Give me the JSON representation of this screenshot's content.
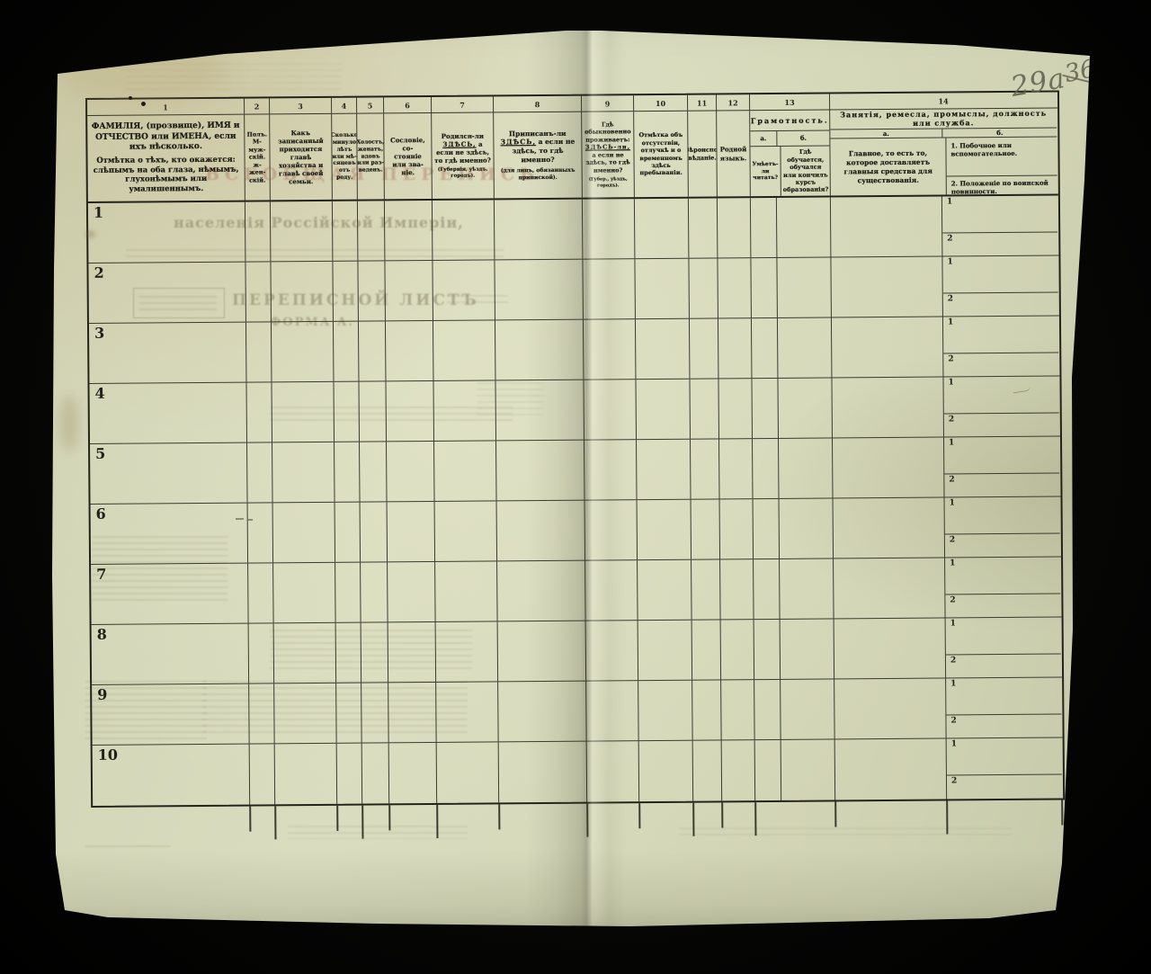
{
  "annotations": {
    "page_number": "29a",
    "crossed_number": "36"
  },
  "ghost_text": {
    "census_title": "ВСЕОБЩАЯ ПЕРЕПИСЬ",
    "subtitle": "населенія Россійской Имперіи,",
    "sheet_title": "ПЕРЕПИСНОЙ ЛИСТЪ",
    "form_label": "ФОРМА А."
  },
  "table": {
    "columns": [
      {
        "num": "1",
        "line1": "ФАМИЛІЯ, (прозвище), ИМЯ и ОТЧЕСТВО или ИМЕНА, если ихъ нѣсколько.",
        "line2": "Отмѣтка о тѣхъ, кто окажется: слѣпымъ на оба глаза, нѣмымъ, глухонѣмымъ или умалишеннымъ."
      },
      {
        "num": "2",
        "text": "Полъ.\nМ-муж-\nскій.\nж-жен-\nскій."
      },
      {
        "num": "3",
        "text": "Какъ записанный приходится главѣ хозяйства и главѣ своей семьи."
      },
      {
        "num": "4",
        "text": "Сколько\nминуло\nлѣтъ\nили мѣ-\nсяцевъ\nотъ роду."
      },
      {
        "num": "5",
        "text": "Холостъ,\nженатъ,\nвдовъ\nили раз-\nведенъ."
      },
      {
        "num": "6",
        "text": "Сословіе, со-\nстояніе или зва-\nніе."
      },
      {
        "num": "7",
        "pre": "Родился-ли",
        "em": "ЗДѢСЬ,",
        "post": "а если не здѣсь, то гдѣ именно?",
        "note": "(Губернія, уѣздъ, городъ)."
      },
      {
        "num": "8",
        "pre": "Приписанъ-ли",
        "em": "ЗДѢСЬ,",
        "post": "а если не здѣсь, то гдѣ именно?",
        "note": "(для лицъ, обязанныхъ припиской)."
      },
      {
        "num": "9",
        "pre": "Гдѣ обыкновенно проживаетъ:",
        "em": "ЗДѢСЬ-ли,",
        "post": "а если не здѣсь, то гдѣ именно?",
        "note": "(Губер., уѣздъ, городъ)."
      },
      {
        "num": "10",
        "text": "Отмѣтка объ отсутствіи, отлучкѣ и о временномъ здѣсь пребываніи."
      },
      {
        "num": "11",
        "text": "Вѣроиспо-\nвѣданіе."
      },
      {
        "num": "12",
        "text": "Родной языкъ."
      },
      {
        "num": "13",
        "group": "Грамотность.",
        "a_label": "а.",
        "b_label": "б.",
        "a_text": "Умѣетъ-\nли\nчитать?",
        "b_text": "Гдѣ обучается, обучался или кончилъ курсъ образованія?"
      },
      {
        "num": "14",
        "group": "Занятія, ремесла, промыслы, должность или служба.",
        "a_label": "а.",
        "b_label": "б.",
        "a_text": "Главное, то есть то, которое доставляетъ главныя средства для существованія.",
        "b1": "1. Побочное или вспомогательное.",
        "b2": "2. Положеніе по воинской повинности."
      }
    ],
    "row_numbers": [
      "1",
      "2",
      "3",
      "4",
      "5",
      "6",
      "7",
      "8",
      "9",
      "10"
    ],
    "subcell_labels": [
      "1",
      "2"
    ]
  },
  "colors": {
    "background": "#060605",
    "paper": "#d5d7b9",
    "table_line": "#35352a",
    "ghost_ink": "#8f8a6b",
    "ghost_red": "#b07a64",
    "pencil": "#5e6350"
  }
}
